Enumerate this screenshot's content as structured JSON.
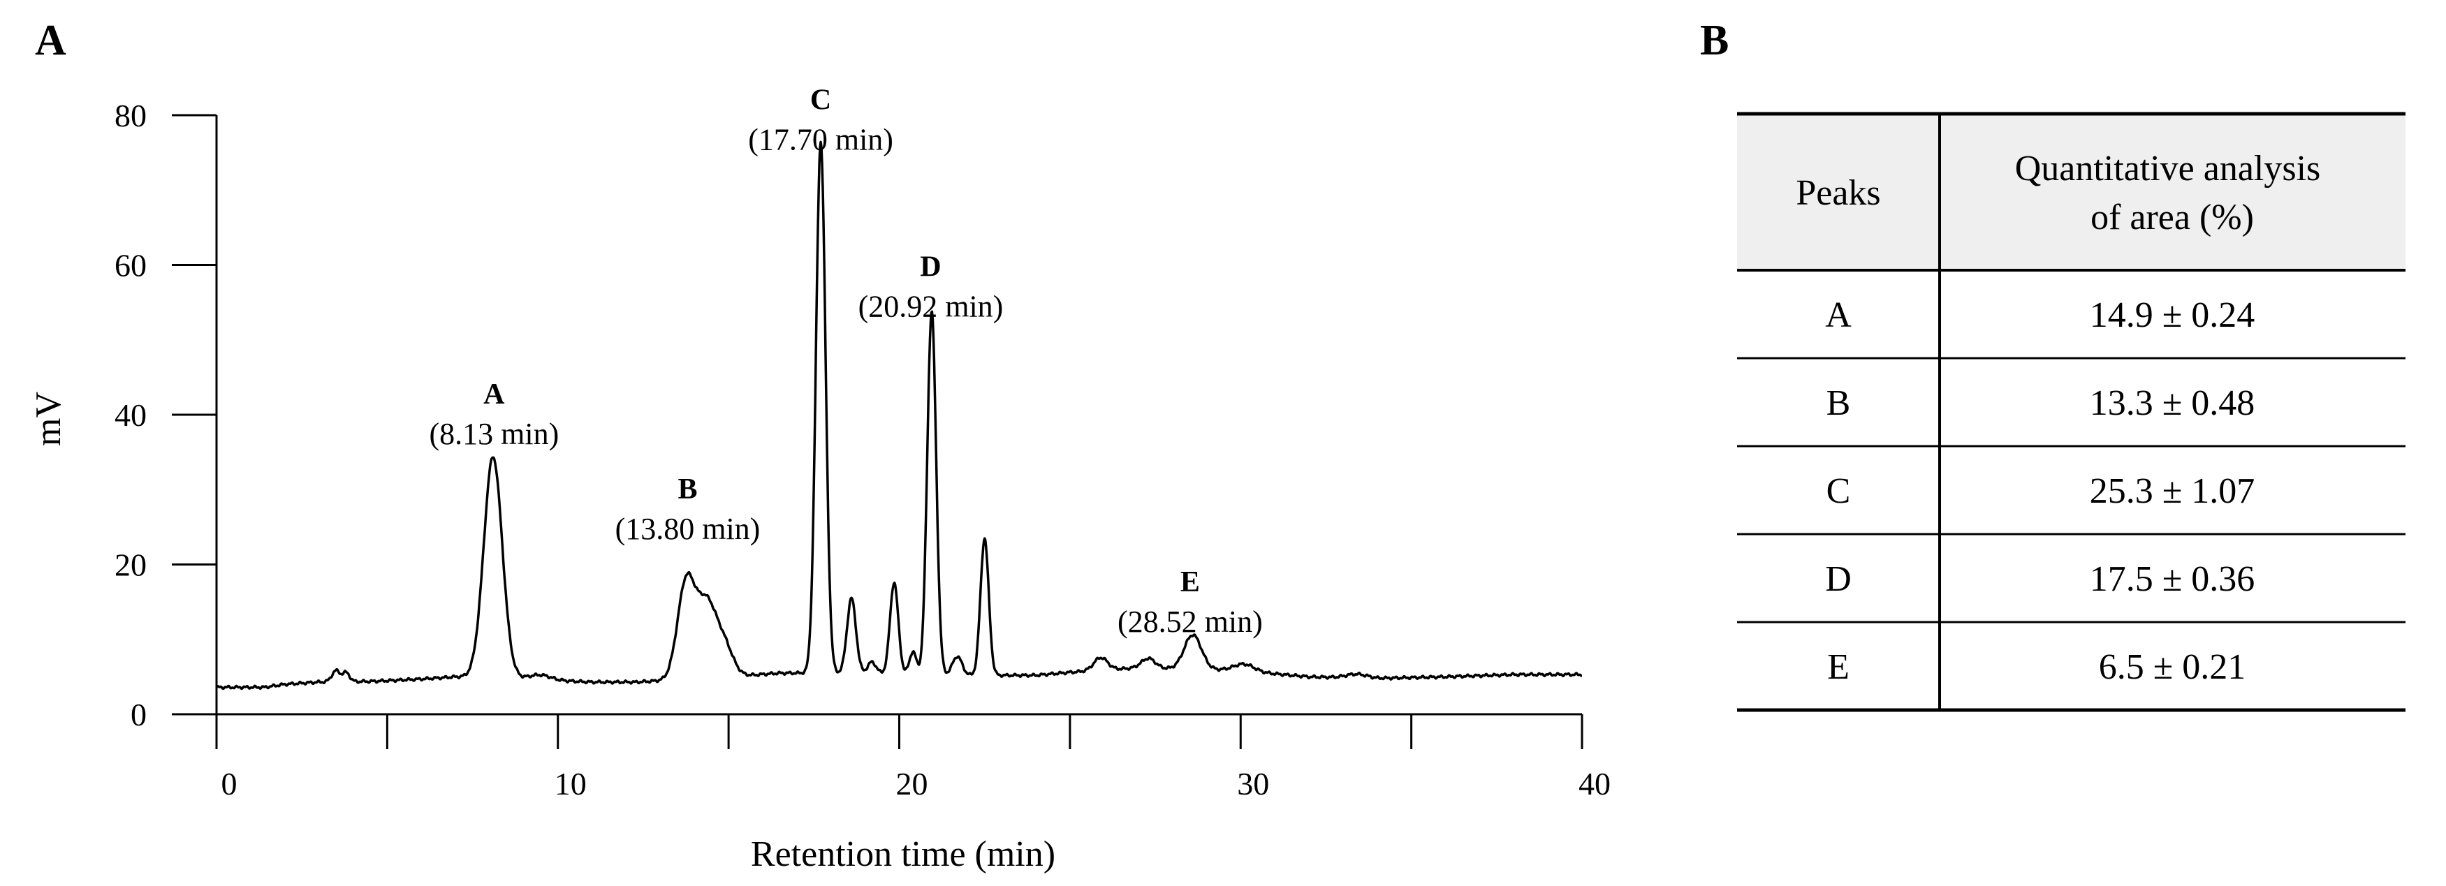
{
  "panels": {
    "left_label": "A",
    "right_label": "B"
  },
  "chart_data": {
    "type": "line",
    "xlabel": "Retention time (min)",
    "ylabel": "mV",
    "xlim": [
      0,
      40
    ],
    "ylim": [
      0,
      80
    ],
    "x_ticks": [
      0,
      10,
      20,
      30,
      40
    ],
    "y_ticks": [
      0,
      20,
      40,
      60,
      80
    ],
    "grid": false,
    "series": [
      {
        "baseline": [
          [
            0,
            3.6
          ],
          [
            1.4,
            3.6
          ],
          [
            2,
            4.0
          ],
          [
            3,
            4.3
          ],
          [
            4.6,
            4.4
          ],
          [
            6,
            4.7
          ],
          [
            7,
            5.0
          ],
          [
            9,
            4.8
          ],
          [
            10,
            4.5
          ],
          [
            11,
            4.3
          ],
          [
            12.3,
            4.3
          ],
          [
            15,
            5.0
          ],
          [
            16.5,
            5.5
          ],
          [
            17,
            5.5
          ],
          [
            19,
            5.5
          ],
          [
            22,
            5.2
          ],
          [
            24,
            5.2
          ],
          [
            25,
            5.6
          ],
          [
            27,
            6.2
          ],
          [
            29.5,
            5.9
          ],
          [
            31,
            5.4
          ],
          [
            32,
            5.0
          ],
          [
            34,
            4.8
          ],
          [
            36,
            5.0
          ],
          [
            38,
            5.3
          ],
          [
            40,
            5.3
          ]
        ],
        "peaks": [
          {
            "rt": 3.5,
            "h": 1.5,
            "w": 0.12
          },
          {
            "rt": 3.8,
            "h": 1.2,
            "w": 0.1
          },
          {
            "rt": 8.1,
            "h": 29.5,
            "w": 0.27
          },
          {
            "rt": 9.5,
            "h": 0.6,
            "w": 0.3
          },
          {
            "rt": 13.75,
            "h": 12.5,
            "w": 0.25
          },
          {
            "rt": 14.35,
            "h": 10.0,
            "w": 0.3
          },
          {
            "rt": 14.9,
            "h": 3.5,
            "w": 0.25
          },
          {
            "rt": 17.7,
            "h": 71.0,
            "w": 0.14
          },
          {
            "rt": 18.6,
            "h": 10.0,
            "w": 0.13
          },
          {
            "rt": 19.2,
            "h": 1.5,
            "w": 0.12
          },
          {
            "rt": 19.85,
            "h": 12.2,
            "w": 0.12
          },
          {
            "rt": 20.4,
            "h": 3.0,
            "w": 0.1
          },
          {
            "rt": 20.95,
            "h": 48.5,
            "w": 0.13
          },
          {
            "rt": 21.7,
            "h": 2.5,
            "w": 0.14
          },
          {
            "rt": 22.5,
            "h": 18.3,
            "w": 0.12
          },
          {
            "rt": 25.9,
            "h": 1.7,
            "w": 0.2
          },
          {
            "rt": 27.3,
            "h": 1.3,
            "w": 0.2
          },
          {
            "rt": 28.6,
            "h": 4.6,
            "w": 0.25
          },
          {
            "rt": 30.1,
            "h": 1.0,
            "w": 0.3
          },
          {
            "rt": 33.4,
            "h": 0.5,
            "w": 0.3
          }
        ]
      }
    ],
    "annotations": [
      {
        "name": "A",
        "time": "(8.13 min)",
        "rt": 8.13,
        "y": 41.5
      },
      {
        "name": "B",
        "time": "(13.80 min)",
        "rt": 13.8,
        "y": 28.8
      },
      {
        "name": "C",
        "time": "(17.70 min)",
        "rt": 17.7,
        "y": 80.8
      },
      {
        "name": "D",
        "time": "(20.92 min)",
        "rt": 20.92,
        "y": 58.5
      },
      {
        "name": "E",
        "time": "(28.52 min)",
        "rt": 28.52,
        "y": 16.4
      }
    ]
  },
  "table": {
    "headers": [
      "Peaks",
      "Quantitative analysis\nof area (%)"
    ],
    "rows": [
      [
        "A",
        "14.9 ± 0.24"
      ],
      [
        "B",
        "13.3 ± 0.48"
      ],
      [
        "C",
        "25.3 ± 1.07"
      ],
      [
        "D",
        "17.5 ± 0.36"
      ],
      [
        "E",
        "6.5 ± 0.21"
      ]
    ]
  }
}
